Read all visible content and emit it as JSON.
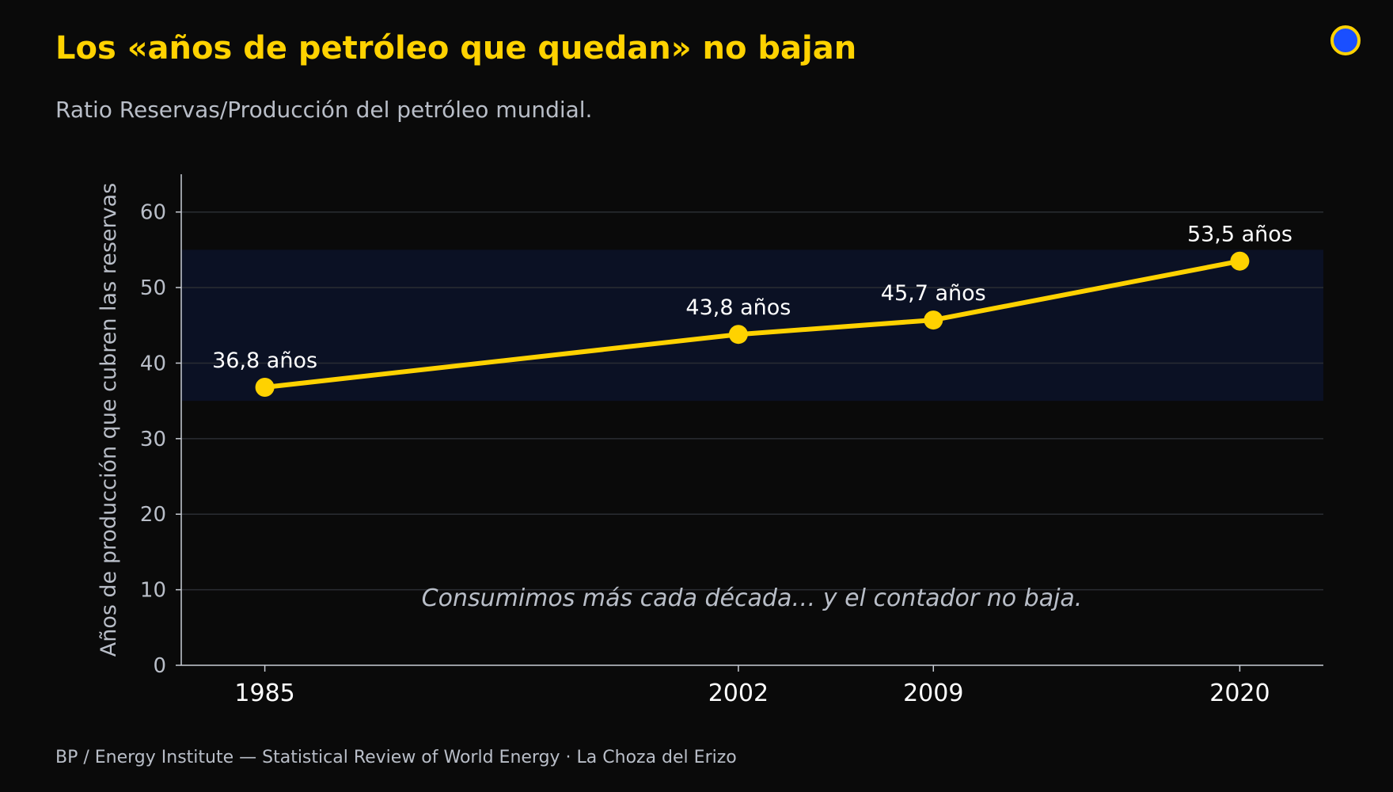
{
  "header": {
    "title": "Los «años de petróleo que quedan» no bajan",
    "subtitle": "Ratio Reservas/Producción del petróleo mundial."
  },
  "footer": {
    "source": "BP / Energy Institute — Statistical Review of World Energy  ·  La Choza del Erizo"
  },
  "colors": {
    "background": "#0a0a0a",
    "accent": "#FFD200",
    "band": "#0b1124",
    "logo_fill": "#1a4fff",
    "muted_text": "#b9bec8"
  },
  "chart_data": {
    "type": "line",
    "x": [
      1985,
      2002,
      2009,
      2020
    ],
    "values": [
      36.8,
      43.8,
      45.7,
      53.5
    ],
    "data_labels": [
      "36,8 años",
      "43,8 años",
      "45,7 años",
      "53,5 años"
    ],
    "x_tick_labels": [
      "1985",
      "2002",
      "2009",
      "2020"
    ],
    "xlim": [
      1982,
      2023
    ],
    "ylim": [
      0,
      65
    ],
    "y_ticks": [
      0,
      10,
      20,
      30,
      40,
      50,
      60
    ],
    "ylabel": "Años de producción que cubren las reservas",
    "xlabel": "",
    "highlight_band": [
      35,
      55
    ],
    "annotation": "Consumimos más cada década… y el contador no baja.",
    "grid": true,
    "legend": "none"
  }
}
